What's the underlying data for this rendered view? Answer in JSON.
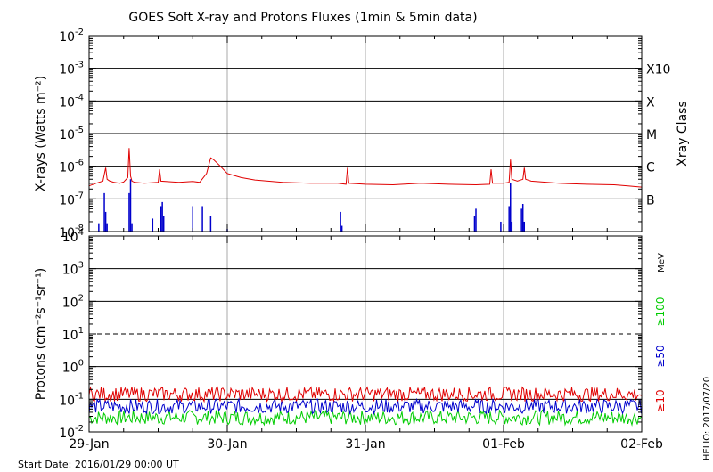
{
  "chart_data": [
    {
      "type": "line",
      "title": "GOES Soft X-ray and Protons Fluxes   (1min & 5min data)",
      "ylabel": "X-rays (Watts m⁻²)",
      "right_axis_label": "Xray Class",
      "yscale": "log",
      "ylim": [
        1e-08,
        0.01
      ],
      "grid": true,
      "y_ticks": [
        {
          "base": "10",
          "exp": "-8",
          "value": 1e-08
        },
        {
          "base": "10",
          "exp": "-7",
          "value": 1e-07
        },
        {
          "base": "10",
          "exp": "-6",
          "value": 1e-06
        },
        {
          "base": "10",
          "exp": "-5",
          "value": 1e-05
        },
        {
          "base": "10",
          "exp": "-4",
          "value": 0.0001
        },
        {
          "base": "10",
          "exp": "-3",
          "value": 0.001
        },
        {
          "base": "10",
          "exp": "-2",
          "value": 0.01
        }
      ],
      "class_labels": [
        {
          "label": "B",
          "value": 1e-07
        },
        {
          "label": "C",
          "value": 1e-06
        },
        {
          "label": "M",
          "value": 1e-05
        },
        {
          "label": "X",
          "value": 0.0001
        },
        {
          "label": "X10",
          "value": 0.001
        }
      ],
      "series": [
        {
          "color": "#e00000",
          "x_days": [
            0,
            0.05,
            0.1,
            0.12,
            0.13,
            0.15,
            0.18,
            0.22,
            0.25,
            0.28,
            0.29,
            0.3,
            0.31,
            0.33,
            0.4,
            0.5,
            0.51,
            0.52,
            0.6,
            0.65,
            0.75,
            0.8,
            0.85,
            0.88,
            0.9,
            0.95,
            1.0,
            1.1,
            1.2,
            1.4,
            1.6,
            1.8,
            1.86,
            1.87,
            1.88,
            2.0,
            2.2,
            2.4,
            2.6,
            2.8,
            2.9,
            2.91,
            2.92,
            3.0,
            3.04,
            3.05,
            3.06,
            3.1,
            3.14,
            3.15,
            3.16,
            3.2,
            3.4,
            3.6,
            3.8,
            3.9,
            4.0
          ],
          "values": [
            2.5e-07,
            3e-07,
            3.5e-07,
            9e-07,
            4e-07,
            3.5e-07,
            3.2e-07,
            3e-07,
            3.3e-07,
            4.5e-07,
            3.6e-06,
            5e-07,
            3.5e-07,
            3.2e-07,
            3e-07,
            3.2e-07,
            8e-07,
            3.5e-07,
            3.3e-07,
            3.2e-07,
            3.4e-07,
            3.2e-07,
            6e-07,
            1.8e-06,
            1.6e-06,
            1e-06,
            6e-07,
            4.5e-07,
            3.8e-07,
            3.2e-07,
            3e-07,
            3e-07,
            2.8e-07,
            9e-07,
            3e-07,
            2.8e-07,
            2.7e-07,
            3e-07,
            2.8e-07,
            2.7e-07,
            2.8e-07,
            8e-07,
            3e-07,
            3e-07,
            3.2e-07,
            1.6e-06,
            4e-07,
            3.5e-07,
            4e-07,
            9e-07,
            4e-07,
            3.5e-07,
            3e-07,
            2.8e-07,
            2.7e-07,
            2.5e-07,
            2.3e-07
          ]
        },
        {
          "color": "#0000cc",
          "x_days": [
            0.07,
            0.11,
            0.12,
            0.13,
            0.29,
            0.3,
            0.31,
            0.46,
            0.52,
            0.53,
            0.54,
            0.75,
            0.82,
            0.88,
            1.0,
            1.82,
            1.83,
            2.79,
            2.8,
            2.98,
            3.04,
            3.05,
            3.06,
            3.13,
            3.14,
            3.15
          ],
          "values": [
            1.8e-08,
            1.5e-07,
            4e-08,
            1.8e-08,
            1.5e-07,
            4e-07,
            1.8e-08,
            2.5e-08,
            6e-08,
            8e-08,
            3e-08,
            6e-08,
            6e-08,
            3e-08,
            1.2e-08,
            4e-08,
            1.5e-08,
            3e-08,
            5e-08,
            2e-08,
            6e-08,
            3e-07,
            2e-08,
            5e-08,
            7e-08,
            2e-08
          ]
        }
      ]
    },
    {
      "type": "line",
      "ylabel": "Protons (cm⁻²s⁻¹sr⁻¹)",
      "yscale": "log",
      "ylim": [
        0.01,
        10000
      ],
      "grid": true,
      "y_ticks": [
        {
          "base": "10",
          "exp": "-2",
          "value": 0.01
        },
        {
          "base": "10",
          "exp": "-1",
          "value": 0.1
        },
        {
          "base": "10",
          "exp": "0",
          "value": 1
        },
        {
          "base": "10",
          "exp": "1",
          "value": 10
        },
        {
          "base": "10",
          "exp": "2",
          "value": 100
        },
        {
          "base": "10",
          "exp": "3",
          "value": 1000
        },
        {
          "base": "10",
          "exp": "4",
          "value": 10000
        }
      ],
      "threshold_line": 10,
      "unit_label": "MeV",
      "series": [
        {
          "name": "≥10",
          "color": "#e00000",
          "level": 0.13
        },
        {
          "name": "≥50",
          "color": "#0000cc",
          "level": 0.055
        },
        {
          "name": "≥100",
          "color": "#00cc00",
          "level": 0.025
        }
      ]
    }
  ],
  "x_ticks": [
    "29-Jan",
    "30-Jan",
    "31-Jan",
    "01-Feb",
    "02-Feb"
  ],
  "start_date": "Start Date: 2016/01/29 00:00 UT",
  "footer_right": "HELIO: 2017/07/20"
}
